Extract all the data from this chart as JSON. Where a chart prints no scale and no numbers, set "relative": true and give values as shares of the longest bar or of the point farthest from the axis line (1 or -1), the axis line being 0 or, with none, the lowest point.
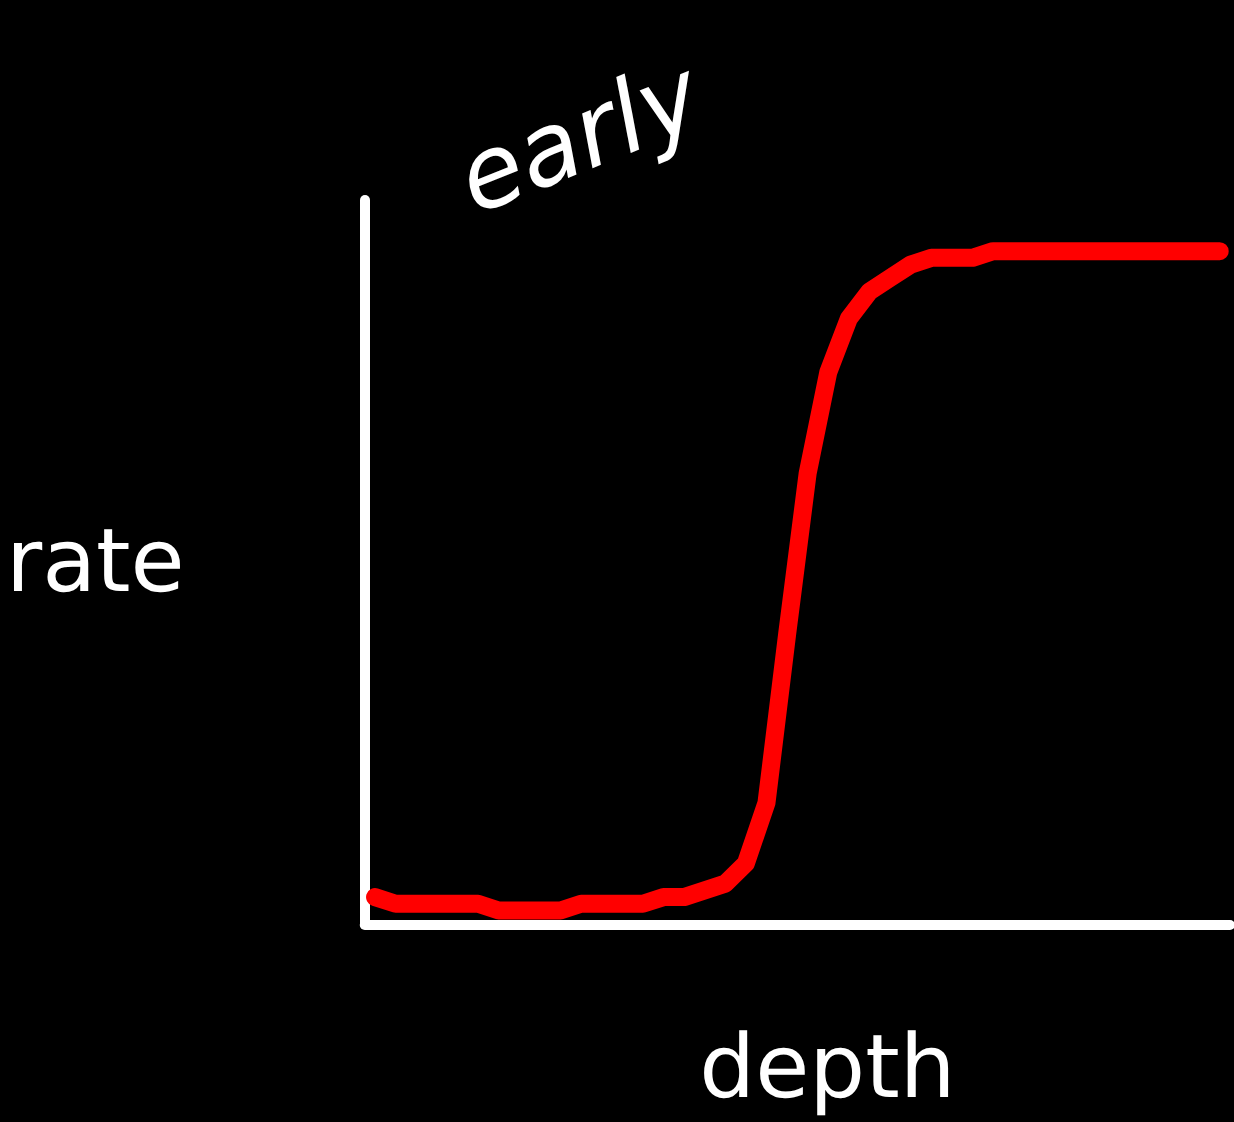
{
  "chart_data": {
    "type": "line",
    "title": "early",
    "xlabel": "depth",
    "ylabel": "rate",
    "relative": true,
    "grid": false,
    "line_style": "solid",
    "categories": [
      null,
      null,
      null,
      null,
      null,
      null,
      null,
      null,
      null,
      null,
      null,
      null,
      null,
      null,
      null,
      null,
      null,
      null,
      null,
      null,
      null,
      null,
      null,
      null,
      null,
      null,
      null,
      null,
      null,
      null,
      null,
      null,
      null,
      null,
      null,
      null,
      null,
      null,
      null,
      null,
      null,
      null
    ],
    "series": [
      {
        "color": "#ff0000",
        "values": [
          0.04,
          0.03,
          0.03,
          0.03,
          0.03,
          0.03,
          0.02,
          0.02,
          0.02,
          0.02,
          0.03,
          0.03,
          0.03,
          0.03,
          0.04,
          0.04,
          0.05,
          0.06,
          0.09,
          0.18,
          0.43,
          0.67,
          0.82,
          0.9,
          0.94,
          0.96,
          0.98,
          0.99,
          0.99,
          0.99,
          1.0,
          1,
          1,
          1,
          1,
          1,
          1,
          1,
          1,
          1,
          1,
          1
        ]
      }
    ]
  }
}
